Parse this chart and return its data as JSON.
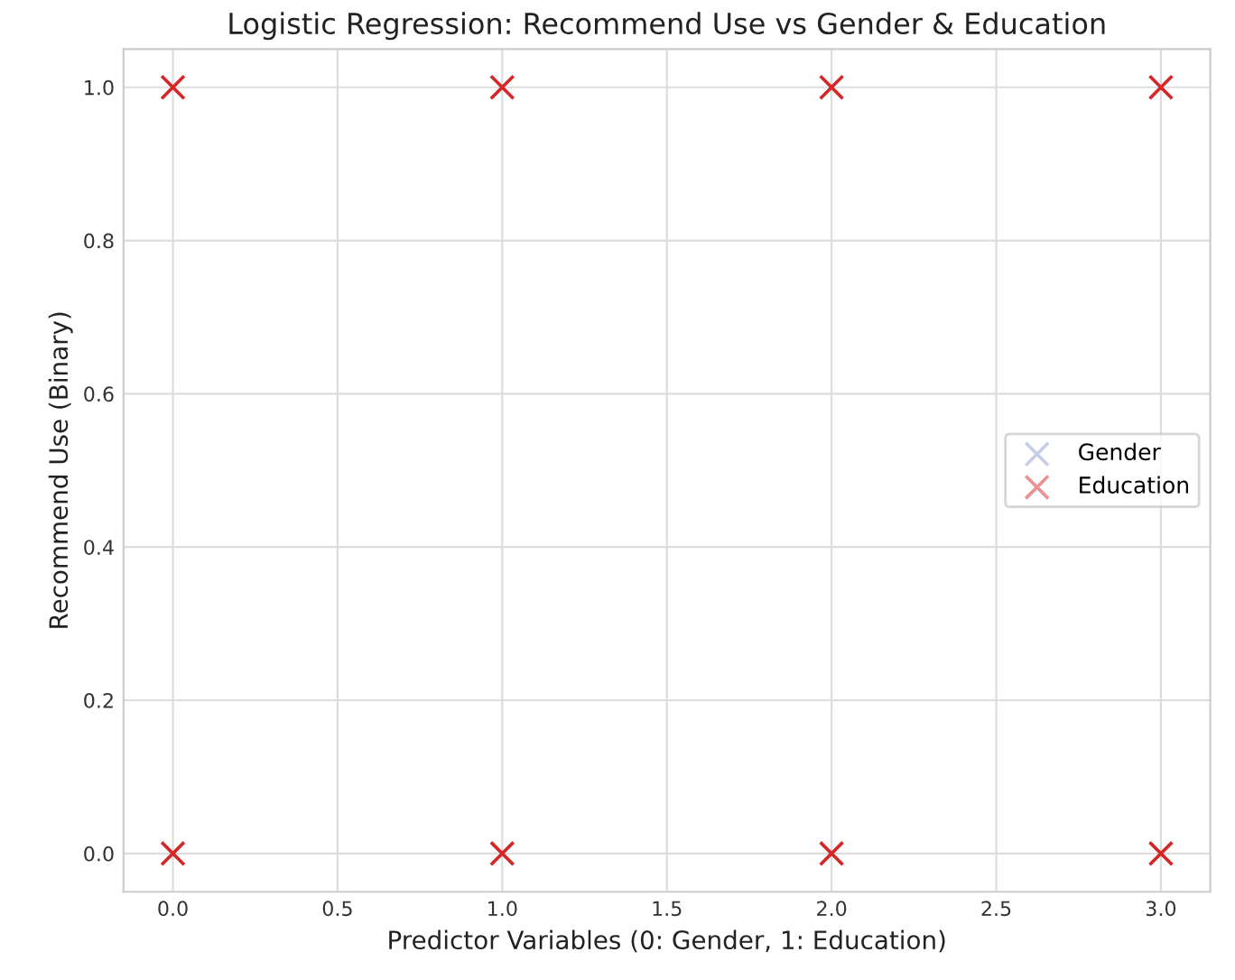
{
  "chart_data": {
    "type": "scatter",
    "title": "Logistic Regression: Recommend Use vs Gender & Education",
    "xlabel": "Predictor Variables (0: Gender, 1: Education)",
    "ylabel": "Recommend Use (Binary)",
    "series": [
      {
        "name": "Gender",
        "color": "#8c9bd0"
      },
      {
        "name": "Education",
        "color": "#d62728",
        "x": [
          0,
          0,
          1,
          1,
          2,
          2,
          3,
          3
        ],
        "values": [
          1,
          0,
          1,
          0,
          1,
          0,
          1,
          0
        ]
      }
    ],
    "xlim": [
      -0.15,
      3.15
    ],
    "xticks": [
      {
        "value": 0,
        "label": "0.0"
      },
      {
        "value": 0.5,
        "label": "0.5"
      },
      {
        "value": 1,
        "label": "1.0"
      },
      {
        "value": 1.5,
        "label": "1.5"
      },
      {
        "value": 2,
        "label": "2.0"
      },
      {
        "value": 2.5,
        "label": "2.5"
      },
      {
        "value": 3,
        "label": "3.0"
      }
    ],
    "ylim": [
      -0.05,
      1.05
    ],
    "yticks": [
      {
        "value": 0,
        "label": "0.0"
      },
      {
        "value": 0.2,
        "label": "0.2"
      },
      {
        "value": 0.4,
        "label": "0.4"
      },
      {
        "value": 0.6,
        "label": "0.6"
      },
      {
        "value": 0.8,
        "label": "0.8"
      },
      {
        "value": 1,
        "label": "1.0"
      }
    ],
    "grid": true,
    "legend": "right",
    "marker": "cross"
  }
}
